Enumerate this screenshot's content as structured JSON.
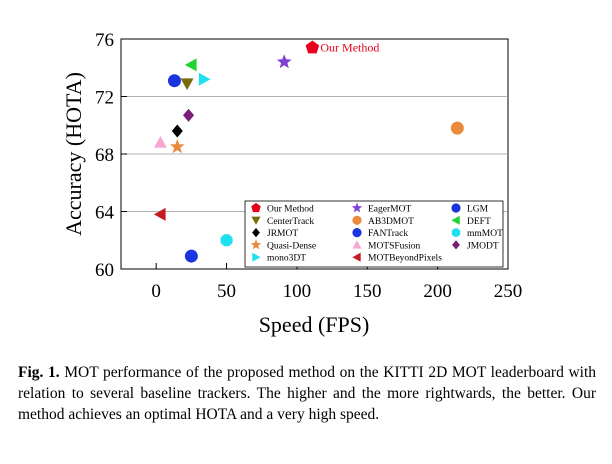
{
  "chart_data": {
    "type": "scatter",
    "xlabel": "Speed (FPS)",
    "ylabel": "Accuracy (HOTA)",
    "xlim": [
      -25,
      250
    ],
    "ylim": [
      60,
      76
    ],
    "xticks": [
      0,
      50,
      100,
      150,
      200,
      250
    ],
    "yticks": [
      60,
      64,
      68,
      72,
      76
    ],
    "grid": "horizontal",
    "legend_position": "bottom-right",
    "series": [
      {
        "name": "Our Method",
        "x": 111,
        "y": 75.4,
        "marker": "pentagon",
        "color": "#e8001c",
        "annotation": "Our Method"
      },
      {
        "name": "EagerMOT",
        "x": 91,
        "y": 74.4,
        "marker": "star",
        "color": "#7f3fd8"
      },
      {
        "name": "LGM",
        "x": 13,
        "y": 73.1,
        "marker": "circle",
        "color": "#1a34e0"
      },
      {
        "name": "CenterTrack",
        "x": 22,
        "y": 72.9,
        "marker": "tri-down",
        "color": "#7a6b12"
      },
      {
        "name": "AB3DMOT",
        "x": 214,
        "y": 69.8,
        "marker": "circle",
        "color": "#ea8a3c"
      },
      {
        "name": "DEFT",
        "x": 25,
        "y": 74.2,
        "marker": "tri-left",
        "color": "#22d22e"
      },
      {
        "name": "JRMOT",
        "x": 15,
        "y": 69.6,
        "marker": "diamond",
        "color": "#000000"
      },
      {
        "name": "FANTrack",
        "x": 25,
        "y": 60.9,
        "marker": "circle",
        "color": "#1a34e0"
      },
      {
        "name": "mmMOT",
        "x": 50,
        "y": 62.0,
        "marker": "octagon",
        "color": "#1ee0ee"
      },
      {
        "name": "Quasi-Dense",
        "x": 15,
        "y": 68.5,
        "marker": "star",
        "color": "#ea8a3c"
      },
      {
        "name": "MOTSFusion",
        "x": 3,
        "y": 68.8,
        "marker": "tri-up",
        "color": "#f6a8d2"
      },
      {
        "name": "JMODT",
        "x": 23,
        "y": 70.7,
        "marker": "diamond",
        "color": "#7a1f78"
      },
      {
        "name": "mono3DT",
        "x": 34,
        "y": 73.2,
        "marker": "tri-right",
        "color": "#1ee0ee"
      },
      {
        "name": "MOTBeyondPixels",
        "x": 3,
        "y": 63.8,
        "marker": "tri-left",
        "color": "#c41a22"
      }
    ]
  },
  "caption": {
    "label": "Fig. 1.",
    "text": "MOT performance of the proposed method on the KITTI 2D MOT leaderboard with relation to several baseline trackers. The higher and the more rightwards, the better. Our method achieves an optimal HOTA and a very high speed."
  }
}
